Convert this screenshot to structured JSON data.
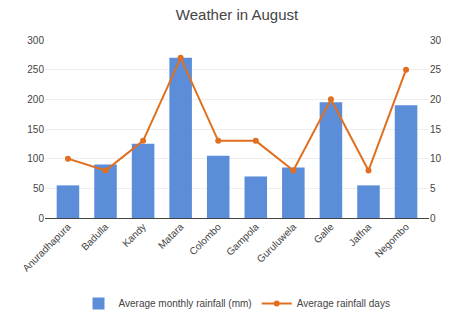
{
  "chart_data": {
    "type": "bar",
    "title": "Weather in August",
    "categories": [
      "Anuradhapura",
      "Badulla",
      "Kandy",
      "Matara",
      "Colombo",
      "Gampola",
      "Guruluwela",
      "Galle",
      "Jaffna",
      "Negombo"
    ],
    "series": [
      {
        "name": "Average monthly rainfall (mm)",
        "type": "bar",
        "color": "#5b8dd9",
        "values": [
          55,
          90,
          125,
          270,
          105,
          70,
          85,
          195,
          55,
          190
        ]
      },
      {
        "name": "Average rainfall days",
        "type": "line",
        "color": "#e07020",
        "marker": "circle",
        "line_style": "solid",
        "axis": "y2",
        "values": [
          10,
          8,
          13,
          27,
          13,
          13,
          8,
          20,
          8,
          25
        ]
      }
    ],
    "ylim": [
      0,
      300
    ],
    "yticks": [
      0,
      50,
      100,
      150,
      200,
      250,
      300
    ],
    "y2lim": [
      0,
      30
    ],
    "y2ticks": [
      0,
      5,
      10,
      15,
      20,
      25,
      30
    ],
    "grid": true,
    "legend": "bottom"
  }
}
